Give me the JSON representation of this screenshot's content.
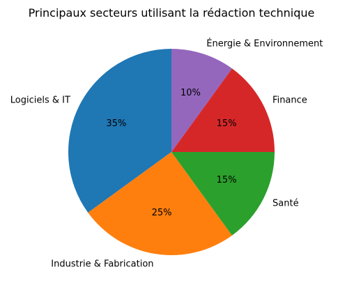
{
  "chart_data": {
    "type": "pie",
    "title": "Principaux secteurs utilisant la rédaction technique",
    "start_angle_deg": 90,
    "direction": "counterclockwise",
    "slices": [
      {
        "label": "Logiciels & IT",
        "value": 35,
        "pct_label": "35%",
        "color": "#1f77b4"
      },
      {
        "label": "Industrie & Fabrication",
        "value": 25,
        "pct_label": "25%",
        "color": "#ff7f0e"
      },
      {
        "label": "Santé",
        "value": 15,
        "pct_label": "15%",
        "color": "#2ca02c"
      },
      {
        "label": "Finance",
        "value": 15,
        "pct_label": "15%",
        "color": "#d62728"
      },
      {
        "label": "Énergie & Environnement",
        "value": 10,
        "pct_label": "10%",
        "color": "#9467bd"
      }
    ]
  }
}
